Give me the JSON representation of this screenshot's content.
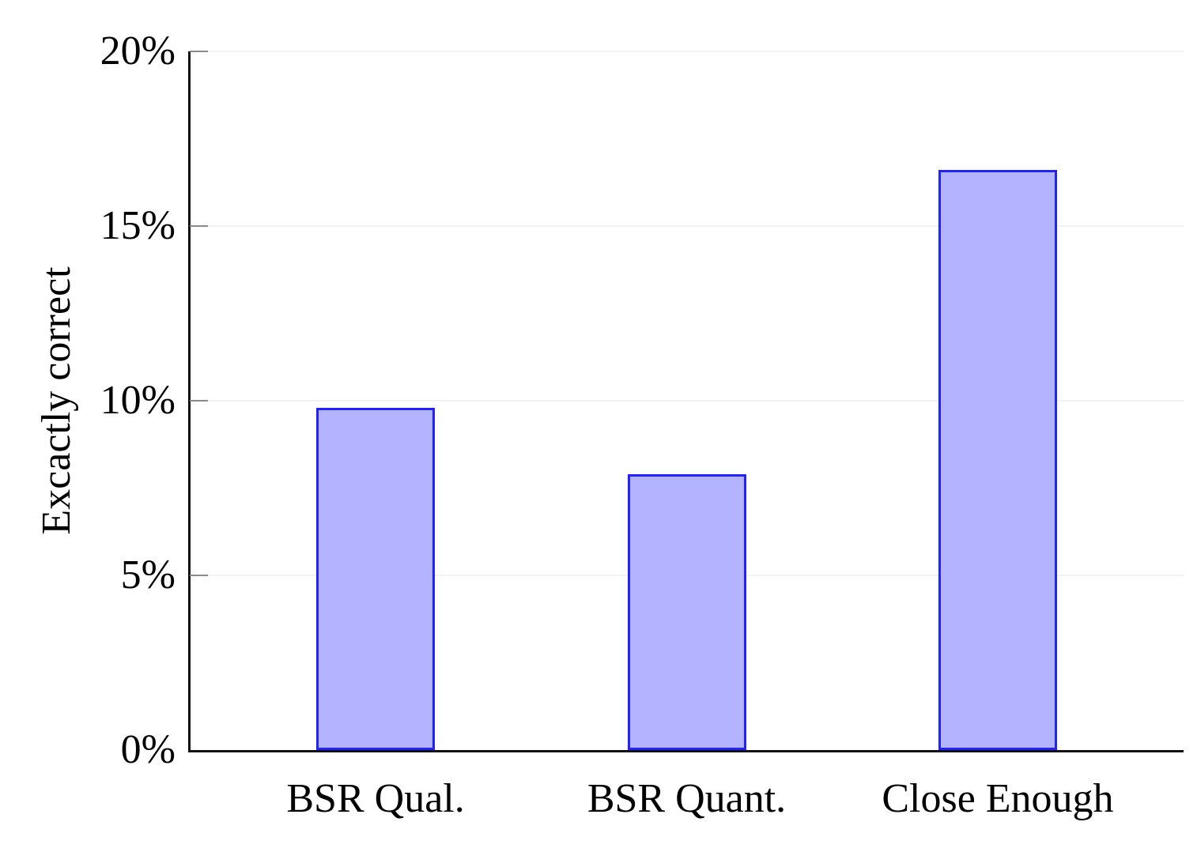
{
  "chart_data": {
    "type": "bar",
    "title": "",
    "categories": [
      "BSR Qual.",
      "BSR Quant.",
      "Close Enough"
    ],
    "values": [
      9.8,
      7.9,
      16.6
    ],
    "xlabel": "",
    "ylabel": "Excactly correct",
    "ylim": [
      0,
      20
    ],
    "yticks": [
      0,
      5,
      10,
      15,
      20
    ],
    "ytick_labels": [
      "0%",
      "5%",
      "10%",
      "15%",
      "20%"
    ],
    "grid": "horizontal",
    "legend": "none",
    "colors": {
      "bar_fill": "#b3b3ff",
      "bar_border": "#2222ff",
      "axis": "#111111",
      "gridline": "#f2f2f2",
      "tick": "#8a8a8a",
      "text": "#000000"
    }
  }
}
